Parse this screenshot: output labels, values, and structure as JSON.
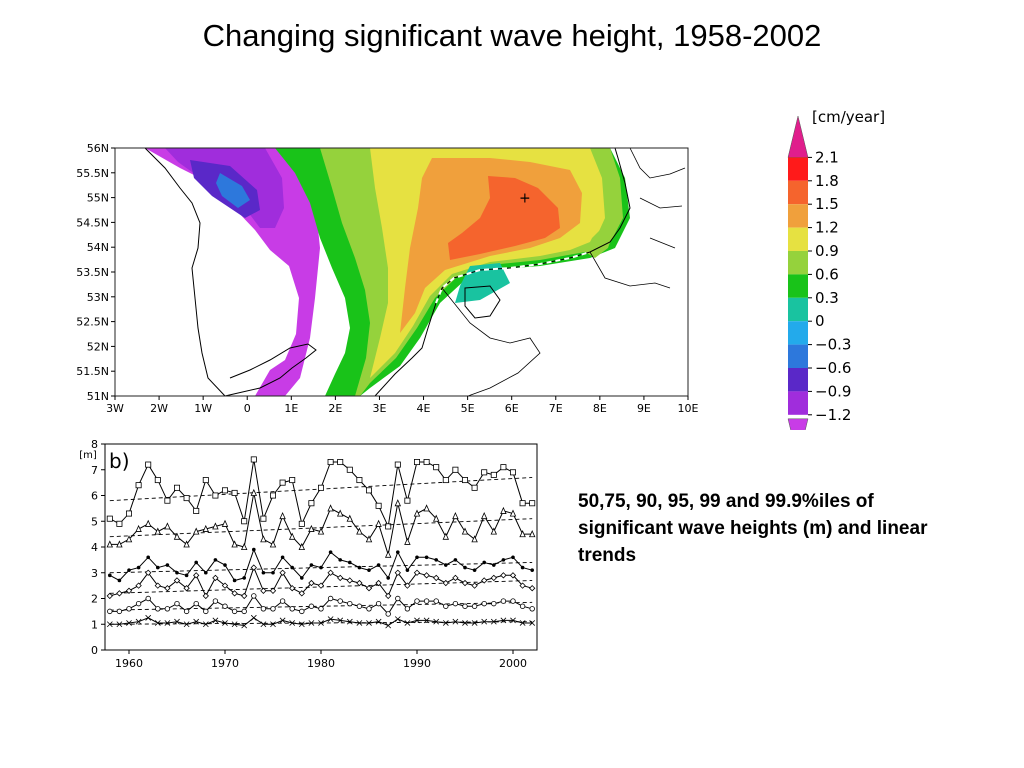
{
  "title": "Changing significant wave height, 1958-2002",
  "caption": "50,75, 90, 95, 99 and 99.9%iles of significant wave heights (m) and linear trends",
  "chart_data": [
    {
      "type": "heatmap",
      "title": "",
      "x_ticks": [
        "3W",
        "2W",
        "1W",
        "0",
        "1E",
        "2E",
        "3E",
        "4E",
        "5E",
        "6E",
        "7E",
        "8E",
        "9E",
        "10E"
      ],
      "y_ticks": [
        "56N",
        "55.5N",
        "55N",
        "54.5N",
        "54N",
        "53.5N",
        "53N",
        "52.5N",
        "52N",
        "51.5N",
        "51N"
      ],
      "xlim": [
        -3,
        10
      ],
      "ylim": [
        51,
        56
      ],
      "marker": {
        "lon": 6.3,
        "lat": 55.0,
        "symbol": "+"
      },
      "legend": {
        "unit": "[cm/year]",
        "levels": [
          "2.1",
          "1.8",
          "1.5",
          "1.2",
          "0.9",
          "0.6",
          "0.3",
          "0",
          "−0.3",
          "−0.6",
          "−0.9",
          "−1.2"
        ],
        "colors": [
          "#e01e8c",
          "#ff1a1a",
          "#f5642d",
          "#f0a03c",
          "#e6e141",
          "#95d23c",
          "#19c319",
          "#19c3a0",
          "#23aaeb",
          "#2d78dc",
          "#5a28c8",
          "#a02ddc",
          "#c83ce6"
        ]
      }
    },
    {
      "type": "line",
      "panel_label": "b)",
      "ylabel": "[m]",
      "xlim": [
        1957.5,
        2002.5
      ],
      "ylim": [
        0,
        8
      ],
      "x_ticks": [
        "1960",
        "1970",
        "1980",
        "1990",
        "2000"
      ],
      "y_ticks": [
        "0",
        "1",
        "2",
        "3",
        "4",
        "5",
        "6",
        "7",
        "8"
      ],
      "x": [
        1958,
        1959,
        1960,
        1961,
        1962,
        1963,
        1964,
        1965,
        1966,
        1967,
        1968,
        1969,
        1970,
        1971,
        1972,
        1973,
        1974,
        1975,
        1976,
        1977,
        1978,
        1979,
        1980,
        1981,
        1982,
        1983,
        1984,
        1985,
        1986,
        1987,
        1988,
        1989,
        1990,
        1991,
        1992,
        1993,
        1994,
        1995,
        1996,
        1997,
        1998,
        1999,
        2000,
        2001,
        2002
      ],
      "series": [
        {
          "marker": "square",
          "trend": [
            5.8,
            6.7
          ],
          "values": [
            5.1,
            4.9,
            5.3,
            6.4,
            7.2,
            6.6,
            5.8,
            6.3,
            5.9,
            5.4,
            6.6,
            6.0,
            6.2,
            6.1,
            5.0,
            7.4,
            5.1,
            6.0,
            6.5,
            6.6,
            4.9,
            5.7,
            6.3,
            7.3,
            7.3,
            7.0,
            6.6,
            6.2,
            5.6,
            4.8,
            7.2,
            5.8,
            7.3,
            7.3,
            7.1,
            6.6,
            7.0,
            6.6,
            6.3,
            6.9,
            6.8,
            7.1,
            6.9,
            5.7,
            5.7
          ]
        },
        {
          "marker": "triangle",
          "trend": [
            4.4,
            5.1
          ],
          "values": [
            4.1,
            4.1,
            4.3,
            4.7,
            4.9,
            4.6,
            4.8,
            4.4,
            4.1,
            4.6,
            4.7,
            4.8,
            4.9,
            4.1,
            4.0,
            6.1,
            4.3,
            4.1,
            5.2,
            4.4,
            4.0,
            4.7,
            4.6,
            5.5,
            5.3,
            5.1,
            4.6,
            4.3,
            4.9,
            3.7,
            5.7,
            4.2,
            5.3,
            5.5,
            5.1,
            4.4,
            5.2,
            4.6,
            4.3,
            5.2,
            4.6,
            5.4,
            5.3,
            4.5,
            4.5
          ]
        },
        {
          "marker": "dot",
          "trend": [
            3.0,
            3.4
          ],
          "values": [
            2.9,
            2.7,
            3.1,
            3.2,
            3.6,
            3.2,
            3.3,
            3.0,
            2.9,
            3.4,
            3.0,
            3.5,
            3.3,
            2.7,
            2.8,
            3.9,
            3.0,
            3.0,
            3.6,
            3.2,
            2.8,
            3.3,
            3.2,
            3.8,
            3.5,
            3.4,
            3.2,
            3.1,
            3.3,
            2.8,
            3.8,
            3.1,
            3.6,
            3.6,
            3.5,
            3.3,
            3.5,
            3.2,
            3.1,
            3.4,
            3.3,
            3.5,
            3.6,
            3.2,
            3.1
          ]
        },
        {
          "marker": "diamond",
          "trend": [
            2.2,
            2.7
          ],
          "values": [
            2.1,
            2.2,
            2.3,
            2.5,
            3.0,
            2.5,
            2.4,
            2.7,
            2.4,
            2.9,
            2.1,
            2.8,
            2.5,
            2.2,
            2.1,
            3.2,
            2.3,
            2.3,
            3.0,
            2.4,
            2.2,
            2.6,
            2.5,
            3.0,
            2.8,
            2.7,
            2.6,
            2.4,
            2.6,
            2.1,
            3.0,
            2.5,
            3.0,
            2.9,
            2.8,
            2.6,
            2.8,
            2.6,
            2.5,
            2.7,
            2.8,
            2.9,
            2.9,
            2.5,
            2.4
          ]
        },
        {
          "marker": "circle",
          "trend": [
            1.55,
            1.85
          ],
          "values": [
            1.5,
            1.5,
            1.6,
            1.8,
            2.0,
            1.6,
            1.6,
            1.8,
            1.5,
            1.8,
            1.5,
            1.9,
            1.7,
            1.5,
            1.5,
            2.1,
            1.6,
            1.6,
            1.9,
            1.6,
            1.5,
            1.7,
            1.6,
            2.0,
            1.9,
            1.8,
            1.7,
            1.6,
            1.8,
            1.4,
            2.0,
            1.6,
            1.9,
            1.9,
            1.9,
            1.7,
            1.8,
            1.7,
            1.7,
            1.8,
            1.8,
            1.9,
            1.9,
            1.7,
            1.6
          ]
        },
        {
          "marker": "cross",
          "trend": [
            1.0,
            1.1
          ],
          "values": [
            1.0,
            1.0,
            1.05,
            1.1,
            1.25,
            1.05,
            1.05,
            1.1,
            1.0,
            1.1,
            1.0,
            1.15,
            1.05,
            1.0,
            0.95,
            1.25,
            1.0,
            1.0,
            1.15,
            1.05,
            1.0,
            1.05,
            1.05,
            1.2,
            1.15,
            1.1,
            1.05,
            1.05,
            1.1,
            0.95,
            1.2,
            1.05,
            1.15,
            1.15,
            1.1,
            1.05,
            1.1,
            1.05,
            1.05,
            1.1,
            1.1,
            1.15,
            1.15,
            1.05,
            1.05
          ]
        }
      ]
    }
  ]
}
